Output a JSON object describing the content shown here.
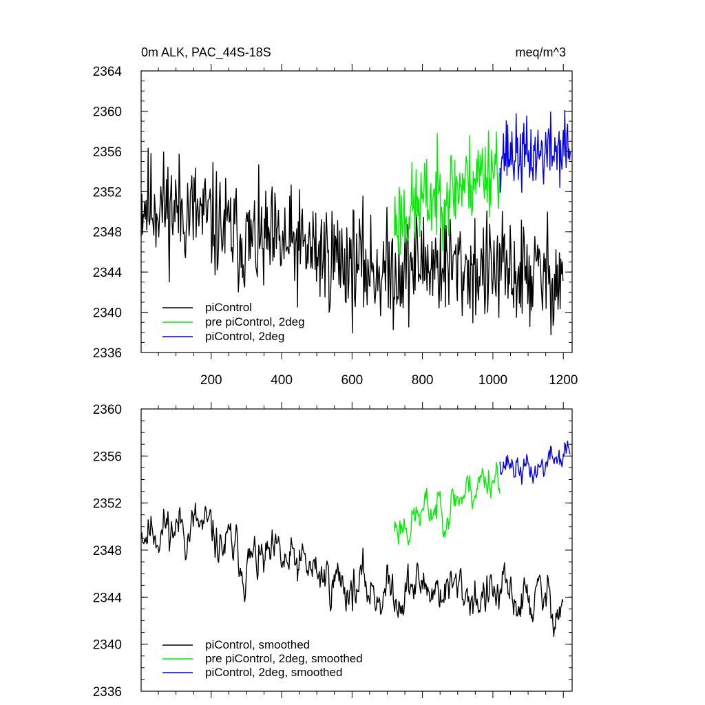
{
  "chart_data": [
    {
      "type": "line",
      "title": "0m ALK, PAC_44S-18S",
      "units": "meq/m^3",
      "xlim": [
        1,
        1225
      ],
      "ylim": [
        2336,
        2364
      ],
      "xticks": [
        200,
        400,
        600,
        800,
        1000,
        1200
      ],
      "xtick_labels": [
        "200",
        "400",
        "600",
        "800",
        "1000",
        "1200"
      ],
      "yticks": [
        2336,
        2340,
        2344,
        2348,
        2352,
        2356,
        2360,
        2364
      ],
      "ytick_labels": [
        "2336",
        "2340",
        "2344",
        "2348",
        "2352",
        "2356",
        "2360",
        "2364"
      ],
      "legend_position": "bottom-left",
      "series": [
        {
          "name": "piControl",
          "color": "#000000",
          "x_start": 1,
          "x_end": 1200,
          "noise_amp": 3.2,
          "seed": 11,
          "trend_points": [
            [
              1,
              2351
            ],
            [
              150,
              2350
            ],
            [
              300,
              2347
            ],
            [
              450,
              2346.5
            ],
            [
              600,
              2345
            ],
            [
              700,
              2344
            ],
            [
              800,
              2345
            ],
            [
              1000,
              2344
            ],
            [
              1200,
              2343.5
            ]
          ]
        },
        {
          "name": "pre piControl, 2deg",
          "color": "#00ee00",
          "x_start": 720,
          "x_end": 1020,
          "noise_amp": 2.6,
          "seed": 23,
          "trend_points": [
            [
              720,
              2349
            ],
            [
              800,
              2351
            ],
            [
              900,
              2352.5
            ],
            [
              1020,
              2355
            ]
          ]
        },
        {
          "name": "piControl, 2deg",
          "color": "#0000ee",
          "x_start": 1020,
          "x_end": 1220,
          "noise_amp": 2.1,
          "seed": 37,
          "trend_points": [
            [
              1020,
              2356
            ],
            [
              1100,
              2355.5
            ],
            [
              1220,
              2356.5
            ]
          ]
        }
      ]
    },
    {
      "type": "line",
      "xlim": [
        1,
        1225
      ],
      "ylim": [
        2336,
        2360
      ],
      "xticks": [
        200,
        400,
        600,
        800,
        1000,
        1200
      ],
      "yticks": [
        2336,
        2340,
        2344,
        2348,
        2352,
        2356,
        2360
      ],
      "ytick_labels": [
        "2336",
        "2340",
        "2344",
        "2348",
        "2352",
        "2356",
        "2360"
      ],
      "legend_position": "bottom-left",
      "series": [
        {
          "name": "piControl, smoothed",
          "color": "#000000",
          "x_start": 1,
          "x_end": 1200,
          "noise_amp": 1.7,
          "seed": 11,
          "trend_points": [
            [
              1,
              2350
            ],
            [
              150,
              2350
            ],
            [
              300,
              2347
            ],
            [
              450,
              2346.5
            ],
            [
              600,
              2345
            ],
            [
              700,
              2344.5
            ],
            [
              800,
              2345
            ],
            [
              1000,
              2344
            ],
            [
              1200,
              2343.5
            ]
          ]
        },
        {
          "name": "pre piControl, 2deg, smoothed",
          "color": "#00ee00",
          "x_start": 720,
          "x_end": 1020,
          "noise_amp": 1.4,
          "seed": 23,
          "trend_points": [
            [
              720,
              2350
            ],
            [
              800,
              2351
            ],
            [
              900,
              2352.5
            ],
            [
              1020,
              2355
            ]
          ]
        },
        {
          "name": "piControl, 2deg, smoothed",
          "color": "#0000ee",
          "x_start": 1020,
          "x_end": 1220,
          "noise_amp": 1.1,
          "seed": 37,
          "trend_points": [
            [
              1020,
              2356
            ],
            [
              1100,
              2354.5
            ],
            [
              1220,
              2356.5
            ]
          ]
        }
      ]
    }
  ]
}
